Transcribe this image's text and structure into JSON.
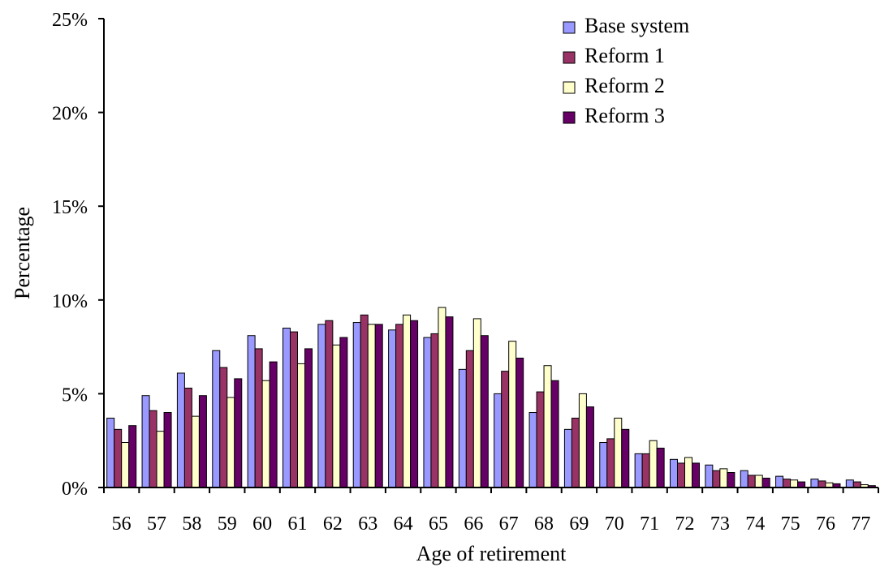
{
  "chart_data": {
    "type": "bar",
    "title": "",
    "xlabel": "Age of retirement",
    "ylabel": "Percentage",
    "ylim": [
      0,
      25
    ],
    "y_ticks": [
      0,
      5,
      10,
      15,
      20,
      25
    ],
    "y_tick_labels": [
      "0%",
      "5%",
      "10%",
      "15%",
      "20%",
      "25%"
    ],
    "grid": false,
    "legend_position": "top-right",
    "categories": [
      "56",
      "57",
      "58",
      "59",
      "60",
      "61",
      "62",
      "63",
      "64",
      "65",
      "66",
      "67",
      "68",
      "69",
      "70",
      "71",
      "72",
      "73",
      "74",
      "75",
      "76",
      "77"
    ],
    "series": [
      {
        "name": "Base system",
        "color": "#9999FF",
        "values": [
          3.7,
          4.9,
          6.1,
          7.3,
          8.1,
          8.5,
          8.7,
          8.8,
          8.4,
          8.0,
          6.3,
          5.0,
          4.0,
          3.1,
          2.4,
          1.8,
          1.5,
          1.2,
          0.9,
          0.6,
          0.45,
          0.4
        ]
      },
      {
        "name": "Reform 1",
        "color": "#993366",
        "values": [
          3.1,
          4.1,
          5.3,
          6.4,
          7.4,
          8.3,
          8.9,
          9.2,
          8.7,
          8.2,
          7.3,
          6.2,
          5.1,
          3.7,
          2.6,
          1.8,
          1.3,
          0.9,
          0.65,
          0.45,
          0.35,
          0.3
        ]
      },
      {
        "name": "Reform 2",
        "color": "#FFFFCC",
        "values": [
          2.4,
          3.0,
          3.8,
          4.8,
          5.7,
          6.6,
          7.6,
          8.7,
          9.2,
          9.6,
          9.0,
          7.8,
          6.5,
          5.0,
          3.7,
          2.5,
          1.6,
          1.0,
          0.65,
          0.4,
          0.25,
          0.15
        ]
      },
      {
        "name": "Reform 3",
        "color": "#660066",
        "values": [
          3.3,
          4.0,
          4.9,
          5.8,
          6.7,
          7.4,
          8.0,
          8.7,
          8.9,
          9.1,
          8.1,
          6.9,
          5.7,
          4.3,
          3.1,
          2.1,
          1.3,
          0.8,
          0.5,
          0.3,
          0.2,
          0.1
        ]
      }
    ]
  }
}
